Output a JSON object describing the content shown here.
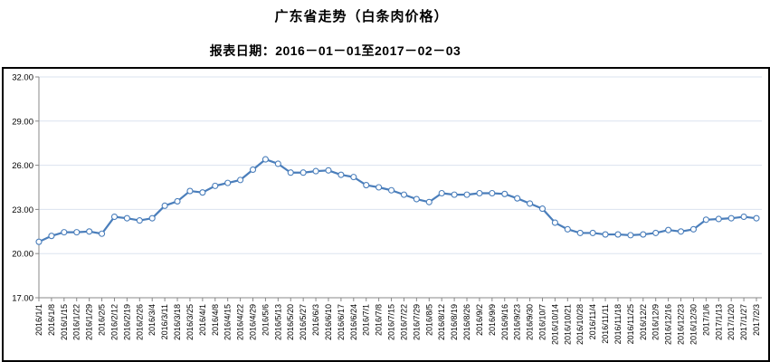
{
  "chart_data": {
    "type": "line",
    "title": "广东省走势（白条肉价格）",
    "subtitle": "报表日期：2016－01－01至2017－02－03",
    "legend_position": "none",
    "grid": true,
    "ylim": [
      17,
      32
    ],
    "yticks": [
      17,
      20,
      23,
      26,
      29,
      32
    ],
    "ytick_labels": [
      "17.00",
      "20.00",
      "23.00",
      "26.00",
      "29.00",
      "32.00"
    ],
    "categories": [
      "2016/1/1",
      "2016/1/8",
      "2016/1/15",
      "2016/1/22",
      "2016/1/29",
      "2016/2/5",
      "2016/2/12",
      "2016/2/19",
      "2016/2/26",
      "2016/3/4",
      "2016/3/11",
      "2016/3/18",
      "2016/3/25",
      "2016/4/1",
      "2016/4/8",
      "2016/4/15",
      "2016/4/22",
      "2016/4/29",
      "2016/5/6",
      "2016/5/13",
      "2016/5/20",
      "2016/5/27",
      "2016/6/3",
      "2016/6/10",
      "2016/6/17",
      "2016/6/24",
      "2016/7/1",
      "2016/7/8",
      "2016/7/15",
      "2016/7/22",
      "2016/7/29",
      "2016/8/5",
      "2016/8/12",
      "2016/8/19",
      "2016/8/26",
      "2016/9/2",
      "2016/9/9",
      "2016/9/16",
      "2016/9/23",
      "2016/9/30",
      "2016/10/7",
      "2016/10/14",
      "2016/10/21",
      "2016/10/28",
      "2016/11/4",
      "2016/11/11",
      "2016/11/18",
      "2016/11/25",
      "2016/12/2",
      "2016/12/9",
      "2016/12/16",
      "2016/12/23",
      "2016/12/30",
      "2017/1/6",
      "2017/1/13",
      "2017/1/20",
      "2017/1/27",
      "2017/2/3"
    ],
    "series": [
      {
        "name": "白条肉价格",
        "values": [
          20.8,
          21.2,
          21.45,
          21.45,
          21.5,
          21.35,
          22.5,
          22.4,
          22.25,
          22.4,
          23.25,
          23.55,
          24.25,
          24.15,
          24.6,
          24.8,
          25.0,
          25.7,
          26.4,
          26.1,
          25.5,
          25.5,
          25.6,
          25.65,
          25.35,
          25.2,
          24.65,
          24.5,
          24.3,
          24.0,
          23.7,
          23.5,
          24.1,
          24.0,
          24.0,
          24.1,
          24.1,
          24.05,
          23.75,
          23.4,
          23.05,
          22.1,
          21.65,
          21.4,
          21.4,
          21.3,
          21.3,
          21.25,
          21.3,
          21.4,
          21.6,
          21.5,
          21.65,
          22.3,
          22.35,
          22.4,
          22.5,
          22.4
        ]
      }
    ],
    "colors": {
      "line": "#4a7ebb",
      "marker_fill": "#ffffff",
      "grid": "#dbe3ef",
      "axis": "#888888",
      "text": "#000000",
      "border": "#000000"
    }
  }
}
